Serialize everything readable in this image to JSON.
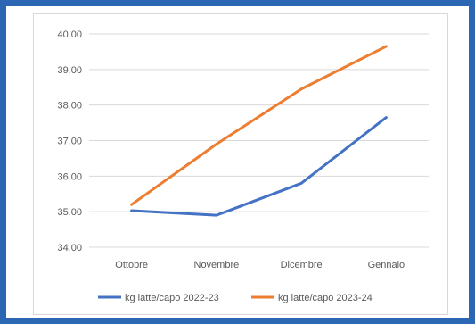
{
  "chart_data": {
    "type": "line",
    "categories": [
      "Ottobre",
      "Novembre",
      "Dicembre",
      "Gennaio"
    ],
    "series": [
      {
        "name": "kg latte/capo 2022-23",
        "color": "#4472c4",
        "values": [
          35.03,
          34.9,
          35.8,
          37.65
        ]
      },
      {
        "name": "kg latte/capo 2023-24",
        "color": "#ed7d31",
        "values": [
          35.2,
          36.9,
          38.45,
          39.65
        ]
      }
    ],
    "ylim": [
      34,
      40
    ],
    "yticks": [
      "34,00",
      "35,00",
      "36,00",
      "37,00",
      "38,00",
      "39,00",
      "40,00"
    ],
    "grid": true,
    "legend_position": "bottom"
  }
}
